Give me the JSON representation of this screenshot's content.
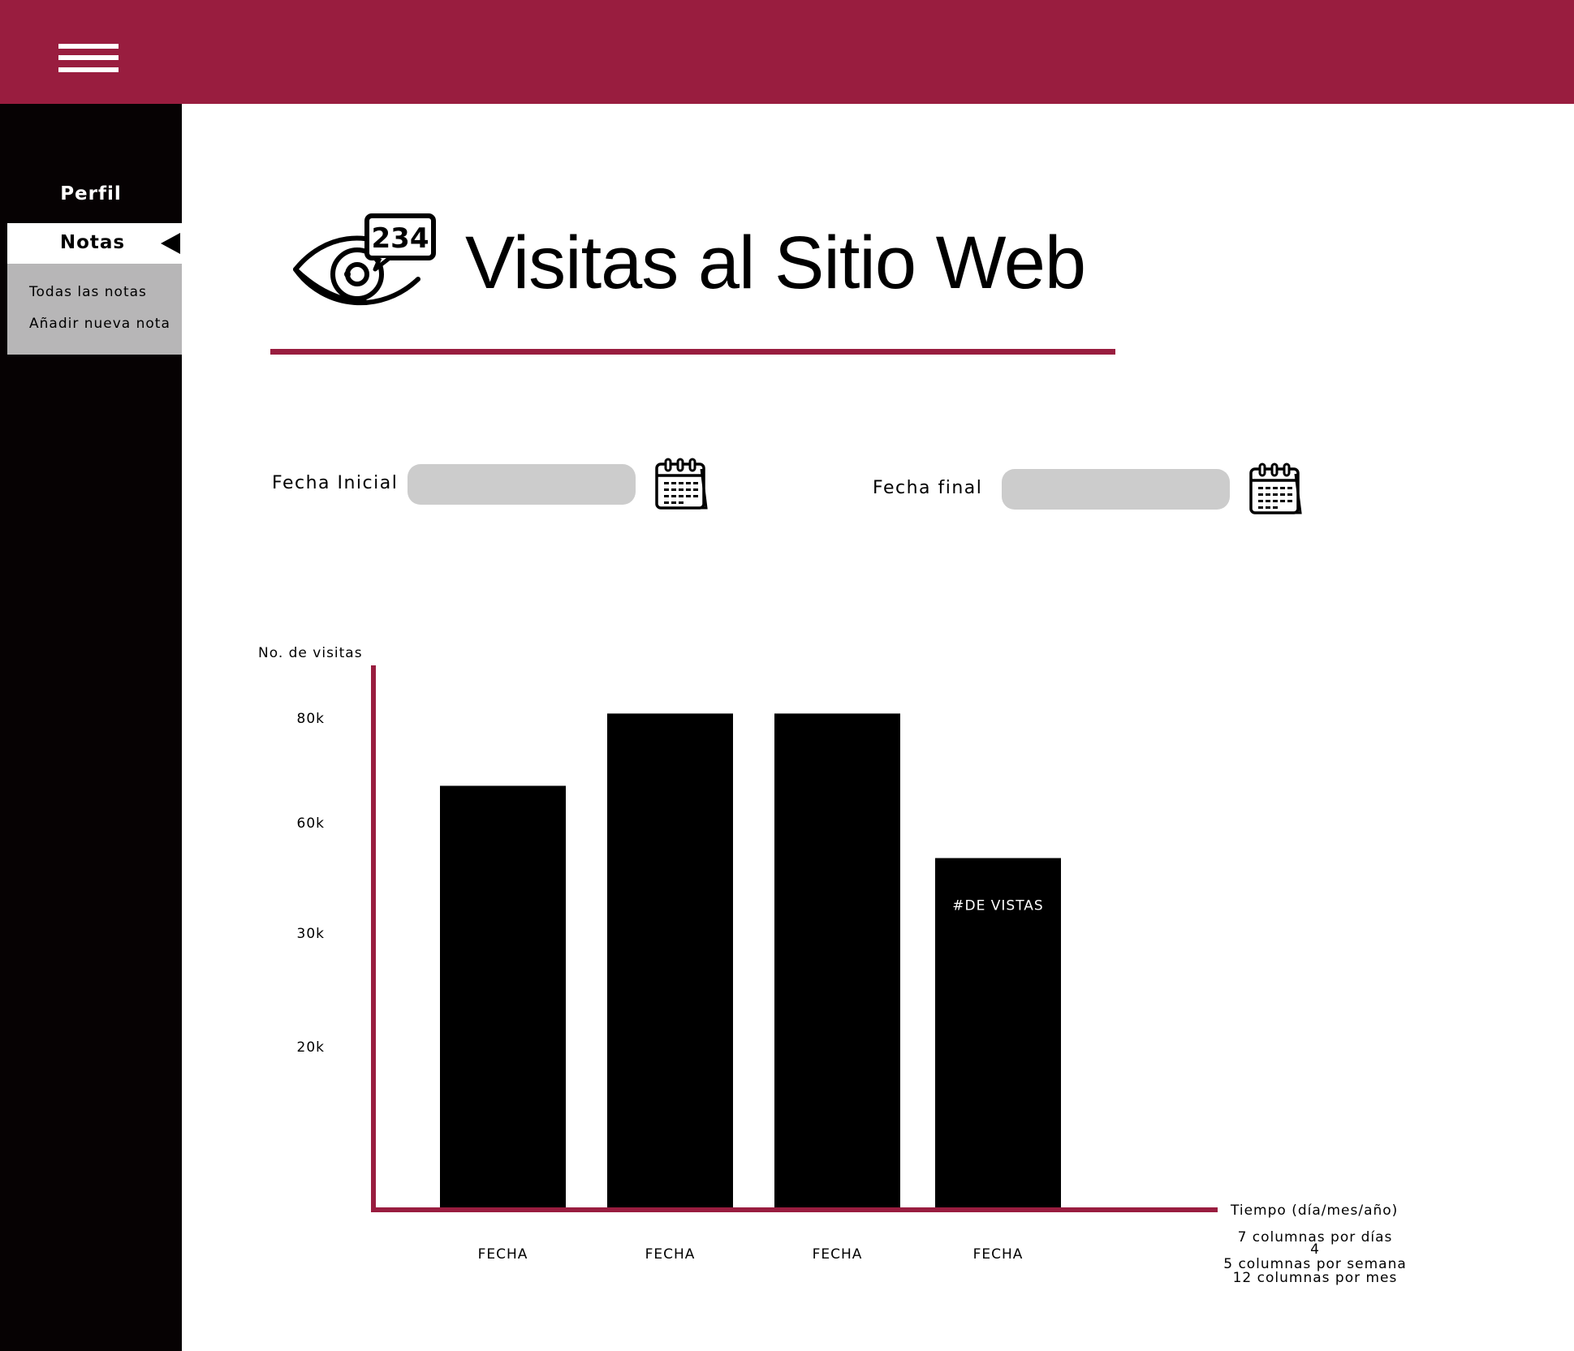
{
  "topbar": {
    "menu_icon": "hamburger-menu-icon",
    "color": "#991d3f"
  },
  "sidebar": {
    "items": [
      {
        "label": "Perfil"
      },
      {
        "label": "Notas",
        "active": true,
        "submenu": [
          "Todas las notas",
          "Añadir nueva nota"
        ]
      }
    ]
  },
  "header": {
    "icon": "eye-counter-icon",
    "icon_counter": "234",
    "title": "Visitas al Sitio Web"
  },
  "filters": {
    "start_label": "Fecha Inicial",
    "start_value": "",
    "end_label": "Fecha final",
    "end_value": "",
    "calendar_icon": "calendar-icon"
  },
  "chart_data": {
    "type": "bar",
    "ylabel": "No. de visitas",
    "xlabel": "Tiempo (día/mes/año)",
    "yticks": [
      "80k",
      "60k",
      "30k",
      "20k"
    ],
    "categories": [
      "FECHA",
      "FECHA",
      "FECHA",
      "FECHA"
    ],
    "values": [
      70,
      82,
      82,
      58
    ],
    "bar_labels": [
      "",
      "",
      "",
      "#DE VISTAS"
    ],
    "ylim": [
      0,
      90
    ],
    "grid": false,
    "notes": [
      "7 columnas por días",
      "4",
      "5 columnas por semana",
      "12 columnas por mes"
    ],
    "colors": {
      "bar": "#000000",
      "axis": "#991d3f"
    }
  }
}
